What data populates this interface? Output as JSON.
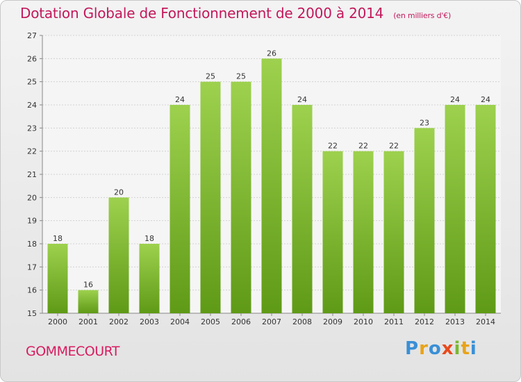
{
  "chart_data": {
    "type": "bar",
    "title": "Dotation Globale de Fonctionnement de 2000 à 2014",
    "subtitle": "(en milliers d'€)",
    "categories": [
      "2000",
      "2001",
      "2002",
      "2003",
      "2004",
      "2005",
      "2006",
      "2007",
      "2008",
      "2009",
      "2010",
      "2011",
      "2012",
      "2013",
      "2014"
    ],
    "values": [
      18,
      16,
      20,
      18,
      24,
      25,
      25,
      26,
      24,
      22,
      22,
      22,
      23,
      24,
      24
    ],
    "xlabel": "",
    "ylabel": "",
    "ylim": [
      15,
      27
    ],
    "yticks": [
      15,
      16,
      17,
      18,
      19,
      20,
      21,
      22,
      23,
      24,
      25,
      26,
      27
    ],
    "grid": "horizontal",
    "bar_color": "#7ab832"
  },
  "footer": {
    "commune": "GOMMECOURT",
    "brand": "Proxiti"
  }
}
